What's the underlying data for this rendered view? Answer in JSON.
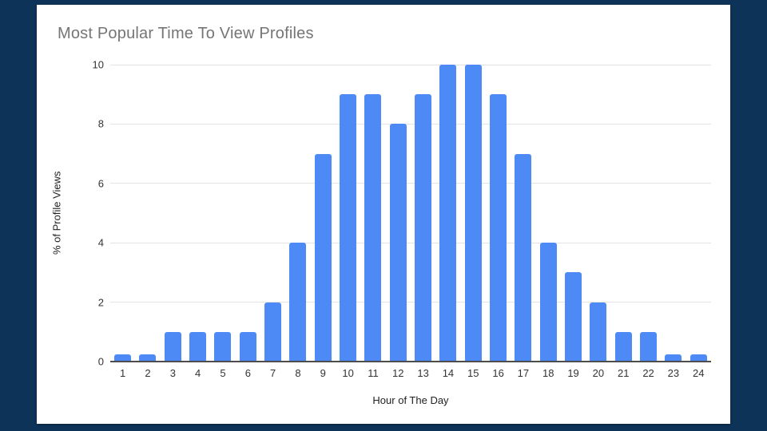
{
  "frame": {
    "background_color": "#0e3358"
  },
  "chart_data": {
    "type": "bar",
    "title": "Most Popular Time To View Profiles",
    "xlabel": "Hour of The Day",
    "ylabel": "% of Profile Views",
    "categories": [
      1,
      2,
      3,
      4,
      5,
      6,
      7,
      8,
      9,
      10,
      11,
      12,
      13,
      14,
      15,
      16,
      17,
      18,
      19,
      20,
      21,
      22,
      23,
      24
    ],
    "values": [
      0.25,
      0.25,
      1,
      1,
      1,
      1,
      2,
      4,
      7,
      9,
      9,
      8,
      9,
      10,
      10,
      9,
      7,
      4,
      3,
      2,
      1,
      1,
      0.25,
      0.25
    ],
    "ylim": [
      0,
      10
    ],
    "yticks": [
      0,
      2,
      4,
      6,
      8,
      10
    ],
    "grid": true,
    "legend": "none",
    "bar_color": "#4d8af5",
    "title_color": "#757575",
    "gridline_color": "#e3e3e3",
    "axis_line_color": "#4d4d4d"
  }
}
